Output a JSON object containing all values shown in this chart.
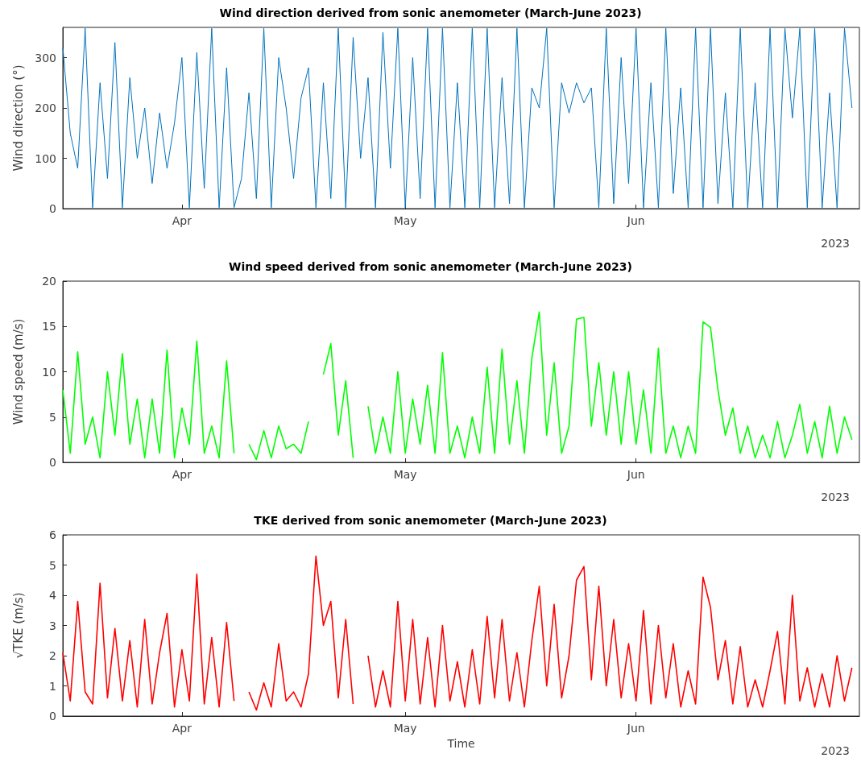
{
  "chart_data": [
    {
      "type": "line",
      "title": "Wind direction derived from sonic anemometer (March-June 2023)",
      "ylabel": "Wind direction (°)",
      "annotations": [
        "2023"
      ],
      "marker": "none",
      "xlim": [
        "2023-03-16",
        "2023-07-01"
      ],
      "xticks": [
        {
          "value": "2023-04-01",
          "label": "Apr"
        },
        {
          "value": "2023-05-01",
          "label": "May"
        },
        {
          "value": "2023-06-01",
          "label": "Jun"
        }
      ],
      "ylim": [
        0,
        360
      ],
      "yticks": [
        0,
        100,
        200,
        300
      ],
      "x": [
        "2023-03-16",
        "2023-03-17",
        "2023-03-18",
        "2023-03-19",
        "2023-03-20",
        "2023-03-21",
        "2023-03-22",
        "2023-03-23",
        "2023-03-24",
        "2023-03-25",
        "2023-03-26",
        "2023-03-27",
        "2023-03-28",
        "2023-03-29",
        "2023-03-30",
        "2023-03-31",
        "2023-04-01",
        "2023-04-02",
        "2023-04-03",
        "2023-04-04",
        "2023-04-05",
        "2023-04-06",
        "2023-04-07",
        "2023-04-08",
        "2023-04-09",
        "2023-04-10",
        "2023-04-11",
        "2023-04-12",
        "2023-04-13",
        "2023-04-14",
        "2023-04-15",
        "2023-04-16",
        "2023-04-17",
        "2023-04-18",
        "2023-04-19",
        "2023-04-20",
        "2023-04-21",
        "2023-04-22",
        "2023-04-23",
        "2023-04-24",
        "2023-04-25",
        "2023-04-26",
        "2023-04-27",
        "2023-04-28",
        "2023-04-29",
        "2023-04-30",
        "2023-05-01",
        "2023-05-02",
        "2023-05-03",
        "2023-05-04",
        "2023-05-05",
        "2023-05-06",
        "2023-05-07",
        "2023-05-08",
        "2023-05-09",
        "2023-05-10",
        "2023-05-11",
        "2023-05-12",
        "2023-05-13",
        "2023-05-14",
        "2023-05-15",
        "2023-05-16",
        "2023-05-17",
        "2023-05-18",
        "2023-05-19",
        "2023-05-20",
        "2023-05-21",
        "2023-05-22",
        "2023-05-23",
        "2023-05-24",
        "2023-05-25",
        "2023-05-26",
        "2023-05-27",
        "2023-05-28",
        "2023-05-29",
        "2023-05-30",
        "2023-05-31",
        "2023-06-01",
        "2023-06-02",
        "2023-06-03",
        "2023-06-04",
        "2023-06-05",
        "2023-06-06",
        "2023-06-07",
        "2023-06-08",
        "2023-06-09",
        "2023-06-10",
        "2023-06-11",
        "2023-06-12",
        "2023-06-13",
        "2023-06-14",
        "2023-06-15",
        "2023-06-16",
        "2023-06-17",
        "2023-06-18",
        "2023-06-19",
        "2023-06-20",
        "2023-06-21",
        "2023-06-22",
        "2023-06-23",
        "2023-06-24",
        "2023-06-25",
        "2023-06-26",
        "2023-06-27",
        "2023-06-28",
        "2023-06-29",
        "2023-06-30"
      ],
      "series": [
        {
          "color": "#0072bd",
          "values": [
            320,
            150,
            80,
            358,
            2,
            250,
            60,
            330,
            2,
            260,
            100,
            200,
            50,
            190,
            80,
            170,
            300,
            2,
            310,
            40,
            358,
            2,
            280,
            2,
            60,
            230,
            20,
            358,
            2,
            300,
            200,
            60,
            220,
            280,
            2,
            250,
            20,
            358,
            2,
            340,
            100,
            260,
            2,
            350,
            80,
            358,
            2,
            300,
            20,
            358,
            2,
            358,
            2,
            250,
            2,
            358,
            2,
            358,
            2,
            260,
            10,
            358,
            2,
            240,
            200,
            358,
            2,
            250,
            190,
            250,
            210,
            240,
            2,
            358,
            10,
            300,
            50,
            358,
            2,
            250,
            2,
            358,
            30,
            240,
            2,
            358,
            2,
            358,
            10,
            230,
            2,
            358,
            2,
            250,
            2,
            358,
            2,
            358,
            180,
            358,
            2,
            358,
            2,
            230,
            2,
            358,
            200
          ]
        }
      ]
    },
    {
      "type": "line",
      "title": "Wind speed derived from sonic anemometer (March-June 2023)",
      "ylabel": "Wind speed (m/s)",
      "annotations": [
        "2023"
      ],
      "marker": "none",
      "xlim": [
        "2023-03-16",
        "2023-07-01"
      ],
      "xticks": [
        {
          "value": "2023-04-01",
          "label": "Apr"
        },
        {
          "value": "2023-05-01",
          "label": "May"
        },
        {
          "value": "2023-06-01",
          "label": "Jun"
        }
      ],
      "ylim": [
        0,
        20
      ],
      "yticks": [
        0,
        5,
        10,
        15,
        20
      ],
      "x": [
        "2023-03-16",
        "2023-03-17",
        "2023-03-18",
        "2023-03-19",
        "2023-03-20",
        "2023-03-21",
        "2023-03-22",
        "2023-03-23",
        "2023-03-24",
        "2023-03-25",
        "2023-03-26",
        "2023-03-27",
        "2023-03-28",
        "2023-03-29",
        "2023-03-30",
        "2023-03-31",
        "2023-04-01",
        "2023-04-02",
        "2023-04-03",
        "2023-04-04",
        "2023-04-05",
        "2023-04-06",
        "2023-04-07",
        "2023-04-08",
        "2023-04-09",
        "2023-04-10",
        "2023-04-11",
        "2023-04-12",
        "2023-04-13",
        "2023-04-14",
        "2023-04-15",
        "2023-04-16",
        "2023-04-17",
        "2023-04-18",
        "2023-04-19",
        "2023-04-20",
        "2023-04-21",
        "2023-04-22",
        "2023-04-23",
        "2023-04-24",
        "2023-04-25",
        "2023-04-26",
        "2023-04-27",
        "2023-04-28",
        "2023-04-29",
        "2023-04-30",
        "2023-05-01",
        "2023-05-02",
        "2023-05-03",
        "2023-05-04",
        "2023-05-05",
        "2023-05-06",
        "2023-05-07",
        "2023-05-08",
        "2023-05-09",
        "2023-05-10",
        "2023-05-11",
        "2023-05-12",
        "2023-05-13",
        "2023-05-14",
        "2023-05-15",
        "2023-05-16",
        "2023-05-17",
        "2023-05-18",
        "2023-05-19",
        "2023-05-20",
        "2023-05-21",
        "2023-05-22",
        "2023-05-23",
        "2023-05-24",
        "2023-05-25",
        "2023-05-26",
        "2023-05-27",
        "2023-05-28",
        "2023-05-29",
        "2023-05-30",
        "2023-05-31",
        "2023-06-01",
        "2023-06-02",
        "2023-06-03",
        "2023-06-04",
        "2023-06-05",
        "2023-06-06",
        "2023-06-07",
        "2023-06-08",
        "2023-06-09",
        "2023-06-10",
        "2023-06-11",
        "2023-06-12",
        "2023-06-13",
        "2023-06-14",
        "2023-06-15",
        "2023-06-16",
        "2023-06-17",
        "2023-06-18",
        "2023-06-19",
        "2023-06-20",
        "2023-06-21",
        "2023-06-22",
        "2023-06-23",
        "2023-06-24",
        "2023-06-25",
        "2023-06-26",
        "2023-06-27",
        "2023-06-28",
        "2023-06-29",
        "2023-06-30"
      ],
      "series": [
        {
          "color": "#00ff00",
          "values": [
            8,
            1,
            12.2,
            2,
            5,
            0.5,
            10,
            3,
            12,
            2,
            7,
            0.5,
            7,
            1,
            12.4,
            0.5,
            6,
            2,
            13.4,
            1,
            4,
            0.5,
            11.2,
            1,
            null,
            2,
            0.3,
            3.5,
            0.5,
            4,
            1.5,
            2,
            1,
            4.5,
            null,
            9.7,
            13.1,
            3,
            9,
            0.5,
            null,
            6.2,
            1,
            5,
            1,
            10,
            1,
            7,
            2,
            8.5,
            1,
            12.1,
            1,
            4,
            0.5,
            5,
            1,
            10.5,
            1,
            12.5,
            2,
            9,
            1,
            11.5,
            16.6,
            3,
            11,
            1,
            4,
            15.8,
            16,
            4,
            11,
            3,
            10,
            2,
            10,
            2,
            8,
            1,
            12.6,
            1,
            4,
            0.5,
            4,
            1,
            15.5,
            14.9,
            8,
            3,
            6,
            1,
            4,
            0.5,
            3,
            0.5,
            4.5,
            0.5,
            3,
            6.4,
            1,
            4.5,
            0.5,
            6.2,
            1,
            5,
            2.5
          ]
        }
      ]
    },
    {
      "type": "line",
      "title": "TKE derived from sonic anemometer (March-June 2023)",
      "xlabel": "Time",
      "ylabel": "√TKE (m/s)",
      "annotations": [
        "2023"
      ],
      "marker": "none",
      "xlim": [
        "2023-03-16",
        "2023-07-01"
      ],
      "xticks": [
        {
          "value": "2023-04-01",
          "label": "Apr"
        },
        {
          "value": "2023-05-01",
          "label": "May"
        },
        {
          "value": "2023-06-01",
          "label": "Jun"
        }
      ],
      "ylim": [
        0,
        6
      ],
      "yticks": [
        0,
        1,
        2,
        3,
        4,
        5,
        6
      ],
      "x": [
        "2023-03-16",
        "2023-03-17",
        "2023-03-18",
        "2023-03-19",
        "2023-03-20",
        "2023-03-21",
        "2023-03-22",
        "2023-03-23",
        "2023-03-24",
        "2023-03-25",
        "2023-03-26",
        "2023-03-27",
        "2023-03-28",
        "2023-03-29",
        "2023-03-30",
        "2023-03-31",
        "2023-04-01",
        "2023-04-02",
        "2023-04-03",
        "2023-04-04",
        "2023-04-05",
        "2023-04-06",
        "2023-04-07",
        "2023-04-08",
        "2023-04-09",
        "2023-04-10",
        "2023-04-11",
        "2023-04-12",
        "2023-04-13",
        "2023-04-14",
        "2023-04-15",
        "2023-04-16",
        "2023-04-17",
        "2023-04-18",
        "2023-04-19",
        "2023-04-20",
        "2023-04-21",
        "2023-04-22",
        "2023-04-23",
        "2023-04-24",
        "2023-04-25",
        "2023-04-26",
        "2023-04-27",
        "2023-04-28",
        "2023-04-29",
        "2023-04-30",
        "2023-05-01",
        "2023-05-02",
        "2023-05-03",
        "2023-05-04",
        "2023-05-05",
        "2023-05-06",
        "2023-05-07",
        "2023-05-08",
        "2023-05-09",
        "2023-05-10",
        "2023-05-11",
        "2023-05-12",
        "2023-05-13",
        "2023-05-14",
        "2023-05-15",
        "2023-05-16",
        "2023-05-17",
        "2023-05-18",
        "2023-05-19",
        "2023-05-20",
        "2023-05-21",
        "2023-05-22",
        "2023-05-23",
        "2023-05-24",
        "2023-05-25",
        "2023-05-26",
        "2023-05-27",
        "2023-05-28",
        "2023-05-29",
        "2023-05-30",
        "2023-05-31",
        "2023-06-01",
        "2023-06-02",
        "2023-06-03",
        "2023-06-04",
        "2023-06-05",
        "2023-06-06",
        "2023-06-07",
        "2023-06-08",
        "2023-06-09",
        "2023-06-10",
        "2023-06-11",
        "2023-06-12",
        "2023-06-13",
        "2023-06-14",
        "2023-06-15",
        "2023-06-16",
        "2023-06-17",
        "2023-06-18",
        "2023-06-19",
        "2023-06-20",
        "2023-06-21",
        "2023-06-22",
        "2023-06-23",
        "2023-06-24",
        "2023-06-25",
        "2023-06-26",
        "2023-06-27",
        "2023-06-28",
        "2023-06-29",
        "2023-06-30"
      ],
      "series": [
        {
          "color": "#ff0000",
          "values": [
            2.1,
            0.5,
            3.8,
            0.8,
            0.4,
            4.4,
            0.6,
            2.9,
            0.5,
            2.5,
            0.3,
            3.2,
            0.4,
            2.1,
            3.4,
            0.3,
            2.2,
            0.5,
            4.7,
            0.4,
            2.6,
            0.3,
            3.1,
            0.5,
            null,
            0.8,
            0.2,
            1.1,
            0.3,
            2.4,
            0.5,
            0.8,
            0.3,
            1.4,
            5.3,
            3.0,
            3.8,
            0.6,
            3.2,
            0.4,
            null,
            2.0,
            0.3,
            1.5,
            0.3,
            3.8,
            0.5,
            3.2,
            0.4,
            2.6,
            0.3,
            3.0,
            0.5,
            1.8,
            0.3,
            2.2,
            0.4,
            3.3,
            0.6,
            3.2,
            0.5,
            2.1,
            0.3,
            2.5,
            4.3,
            1.0,
            3.7,
            0.6,
            2.0,
            4.5,
            4.95,
            1.2,
            4.3,
            1.0,
            3.2,
            0.6,
            2.4,
            0.5,
            3.5,
            0.4,
            3.0,
            0.6,
            2.4,
            0.3,
            1.5,
            0.4,
            4.6,
            3.6,
            1.2,
            2.5,
            0.4,
            2.3,
            0.3,
            1.2,
            0.3,
            1.5,
            2.8,
            0.4,
            4.0,
            0.5,
            1.6,
            0.3,
            1.4,
            0.3,
            2.0,
            0.5,
            1.6
          ]
        }
      ]
    }
  ]
}
